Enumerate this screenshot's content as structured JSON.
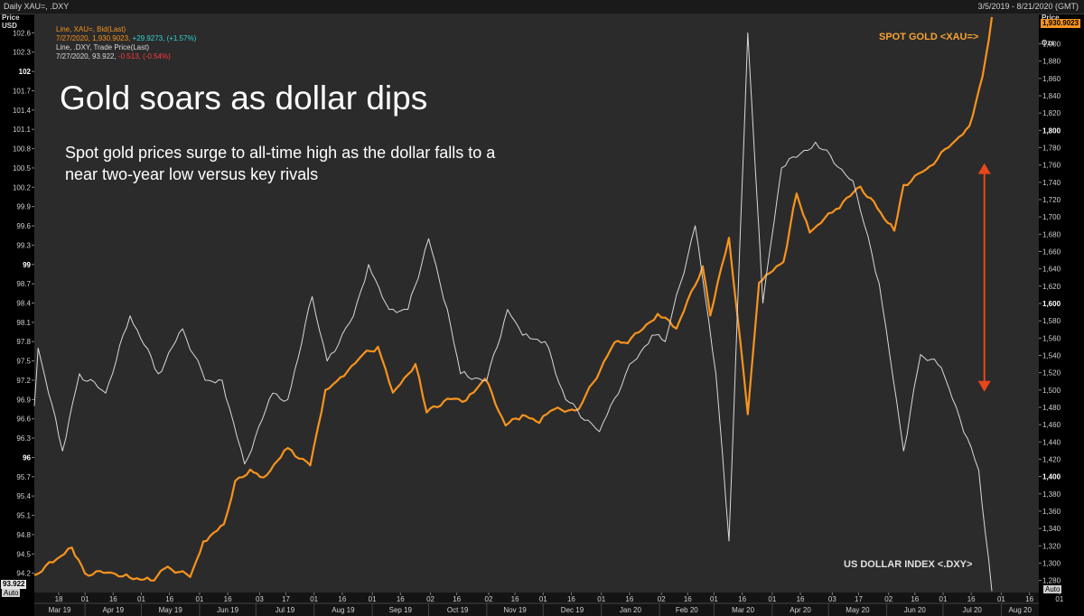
{
  "header": {
    "window_title": "Daily XAU=, .DXY",
    "date_range": "3/5/2019 - 8/21/2020 (GMT)"
  },
  "axis_headers": {
    "left_price": "Price",
    "left_unit": "USD",
    "right_price": "Price",
    "right_unit": "USD",
    "right_unit2": "Ozs",
    "auto": "Auto"
  },
  "legend": {
    "gold_line": "Line, XAU=, Bid(Last)",
    "gold_date_value": "7/27/2020, 1,930.9023,",
    "gold_change": "+29.9273, (+1.57%)",
    "dxy_line": "Line, .DXY, Trade Price(Last)",
    "dxy_date_value": "7/27/2020, 93.922,",
    "dxy_change": "-0.513, (-0.54%)"
  },
  "title": "Gold soars as dollar dips",
  "subtitle": "Spot gold prices surge to all-time high as the dollar falls to a near two-year low versus key rivals",
  "labels": {
    "gold_series": "SPOT GOLD <XAU=>",
    "dxy_series": "US DOLLAR INDEX <.DXY>",
    "gold_last_tag": "1,930.9023",
    "dxy_last_tag": "93.922"
  },
  "colors": {
    "gold": "#f7931e",
    "dxy": "#d9d9d9",
    "arrow": "#e8461c",
    "background": "#2b2b2b",
    "positive": "#35d2d2",
    "negative": "#ff3a3a"
  },
  "chart_data": {
    "type": "line",
    "left_axis": {
      "series": "US DOLLAR INDEX <.DXY>",
      "ticks": [
        "94.2",
        "94.5",
        "94.8",
        "95.1",
        "95.4",
        "95.7",
        "96",
        "96.3",
        "96.6",
        "96.9",
        "97.2",
        "97.5",
        "97.8",
        "98.1",
        "98.4",
        "98.7",
        "99",
        "99.3",
        "99.6",
        "99.9",
        "100.2",
        "100.5",
        "100.8",
        "101.1",
        "101.4",
        "101.7",
        "102",
        "102.3",
        "102.6"
      ],
      "bold_ticks": [
        "96",
        "99",
        "102"
      ],
      "ylim": [
        93.9,
        102.9
      ]
    },
    "right_axis": {
      "series": "SPOT GOLD <XAU=>",
      "ticks": [
        "1,280",
        "1,300",
        "1,320",
        "1,340",
        "1,360",
        "1,380",
        "1,400",
        "1,420",
        "1,440",
        "1,460",
        "1,480",
        "1,500",
        "1,520",
        "1,540",
        "1,560",
        "1,580",
        "1,600",
        "1,620",
        "1,640",
        "1,660",
        "1,680",
        "1,700",
        "1,720",
        "1,740",
        "1,760",
        "1,780",
        "1,800",
        "1,820",
        "1,840",
        "1,860",
        "1,880",
        "1,900"
      ],
      "bold_ticks": [
        "1,400",
        "1,600",
        "1,800"
      ],
      "ylim": [
        1266,
        1935
      ]
    },
    "x_axis": {
      "day_ticks": [
        "18",
        "01",
        "16",
        "01",
        "16",
        "01",
        "16",
        "03",
        "17",
        "01",
        "16",
        "01",
        "16",
        "02",
        "16",
        "02",
        "16",
        "01",
        "16",
        "01",
        "16",
        "02",
        "16",
        "01",
        "16",
        "01",
        "16",
        "03",
        "17",
        "02",
        "16",
        "01",
        "16",
        "01",
        "16",
        "01",
        "16",
        "01",
        "16",
        "03",
        "17"
      ],
      "month_labels": [
        "Mar 19",
        "Apr 19",
        "May 19",
        "Jun 19",
        "Jul 19",
        "Aug 19",
        "Sep 19",
        "Oct 19",
        "Nov 19",
        "Dec 19",
        "Jan 20",
        "Feb 20",
        "Mar 20",
        "Apr 20",
        "May 20",
        "Jun 20",
        "Jul 20",
        "Aug 20"
      ],
      "start": "2019-03-05",
      "end": "2020-08-21"
    },
    "series": [
      {
        "name": "SPOT GOLD <XAU=>",
        "axis": "right",
        "color": "#f7931e",
        "points": [
          [
            "2019-03-05",
            1286
          ],
          [
            "2019-03-15",
            1301
          ],
          [
            "2019-03-25",
            1318
          ],
          [
            "2019-04-01",
            1288
          ],
          [
            "2019-04-15",
            1289
          ],
          [
            "2019-04-25",
            1283
          ],
          [
            "2019-05-06",
            1280
          ],
          [
            "2019-05-15",
            1296
          ],
          [
            "2019-05-27",
            1284
          ],
          [
            "2019-06-03",
            1325
          ],
          [
            "2019-06-14",
            1345
          ],
          [
            "2019-06-20",
            1395
          ],
          [
            "2019-06-28",
            1408
          ],
          [
            "2019-07-05",
            1399
          ],
          [
            "2019-07-18",
            1433
          ],
          [
            "2019-07-30",
            1413
          ],
          [
            "2019-08-07",
            1500
          ],
          [
            "2019-08-13",
            1510
          ],
          [
            "2019-08-27",
            1541
          ],
          [
            "2019-09-04",
            1550
          ],
          [
            "2019-09-12",
            1497
          ],
          [
            "2019-09-24",
            1530
          ],
          [
            "2019-09-30",
            1474
          ],
          [
            "2019-10-11",
            1490
          ],
          [
            "2019-10-21",
            1488
          ],
          [
            "2019-10-31",
            1513
          ],
          [
            "2019-11-11",
            1459
          ],
          [
            "2019-11-20",
            1471
          ],
          [
            "2019-11-29",
            1462
          ],
          [
            "2019-12-05",
            1476
          ],
          [
            "2019-12-20",
            1478
          ],
          [
            "2020-01-08",
            1555
          ],
          [
            "2020-01-15",
            1554
          ],
          [
            "2020-01-31",
            1588
          ],
          [
            "2020-02-10",
            1571
          ],
          [
            "2020-02-24",
            1643
          ],
          [
            "2020-02-28",
            1586
          ],
          [
            "2020-03-09",
            1676
          ],
          [
            "2020-03-19",
            1472
          ],
          [
            "2020-03-25",
            1624
          ],
          [
            "2020-04-07",
            1648
          ],
          [
            "2020-04-14",
            1727
          ],
          [
            "2020-04-21",
            1682
          ],
          [
            "2020-05-05",
            1709
          ],
          [
            "2020-05-18",
            1735
          ],
          [
            "2020-05-27",
            1710
          ],
          [
            "2020-06-05",
            1684
          ],
          [
            "2020-06-10",
            1737
          ],
          [
            "2020-06-22",
            1755
          ],
          [
            "2020-07-06",
            1785
          ],
          [
            "2020-07-15",
            1805
          ],
          [
            "2020-07-22",
            1862
          ],
          [
            "2020-07-27",
            1930.9
          ]
        ]
      },
      {
        "name": "US DOLLAR INDEX <.DXY>",
        "axis": "left",
        "color": "#d9d9d9",
        "points": [
          [
            "2019-03-05",
            96.8
          ],
          [
            "2019-03-07",
            97.7
          ],
          [
            "2019-03-20",
            96.1
          ],
          [
            "2019-03-29",
            97.3
          ],
          [
            "2019-04-12",
            97.0
          ],
          [
            "2019-04-25",
            98.2
          ],
          [
            "2019-05-10",
            97.3
          ],
          [
            "2019-05-23",
            98.0
          ],
          [
            "2019-06-04",
            97.2
          ],
          [
            "2019-06-13",
            97.2
          ],
          [
            "2019-06-25",
            95.9
          ],
          [
            "2019-07-10",
            97.0
          ],
          [
            "2019-07-18",
            96.9
          ],
          [
            "2019-07-31",
            98.5
          ],
          [
            "2019-08-08",
            97.5
          ],
          [
            "2019-08-22",
            98.2
          ],
          [
            "2019-08-30",
            99.0
          ],
          [
            "2019-09-10",
            98.3
          ],
          [
            "2019-09-20",
            98.3
          ],
          [
            "2019-10-01",
            99.4
          ],
          [
            "2019-10-11",
            98.3
          ],
          [
            "2019-10-18",
            97.3
          ],
          [
            "2019-11-01",
            97.2
          ],
          [
            "2019-11-12",
            98.3
          ],
          [
            "2019-11-20",
            97.9
          ],
          [
            "2019-12-02",
            97.8
          ],
          [
            "2019-12-13",
            96.9
          ],
          [
            "2019-12-31",
            96.4
          ],
          [
            "2020-01-14",
            97.3
          ],
          [
            "2020-01-28",
            97.9
          ],
          [
            "2020-02-04",
            97.8
          ],
          [
            "2020-02-20",
            99.6
          ],
          [
            "2020-03-02",
            97.3
          ],
          [
            "2020-03-09",
            94.7
          ],
          [
            "2020-03-19",
            102.6
          ],
          [
            "2020-03-27",
            98.4
          ],
          [
            "2020-04-06",
            100.5
          ],
          [
            "2020-04-24",
            100.9
          ],
          [
            "2020-05-14",
            100.3
          ],
          [
            "2020-05-28",
            98.7
          ],
          [
            "2020-06-10",
            96.1
          ],
          [
            "2020-06-19",
            97.6
          ],
          [
            "2020-06-30",
            97.4
          ],
          [
            "2020-07-10",
            96.6
          ],
          [
            "2020-07-20",
            95.8
          ],
          [
            "2020-07-27",
            93.922
          ]
        ]
      }
    ],
    "annotations": [
      {
        "type": "double-arrow",
        "date": "2020-07-23",
        "y_right_from": 1500,
        "y_right_to": 1760
      }
    ]
  }
}
